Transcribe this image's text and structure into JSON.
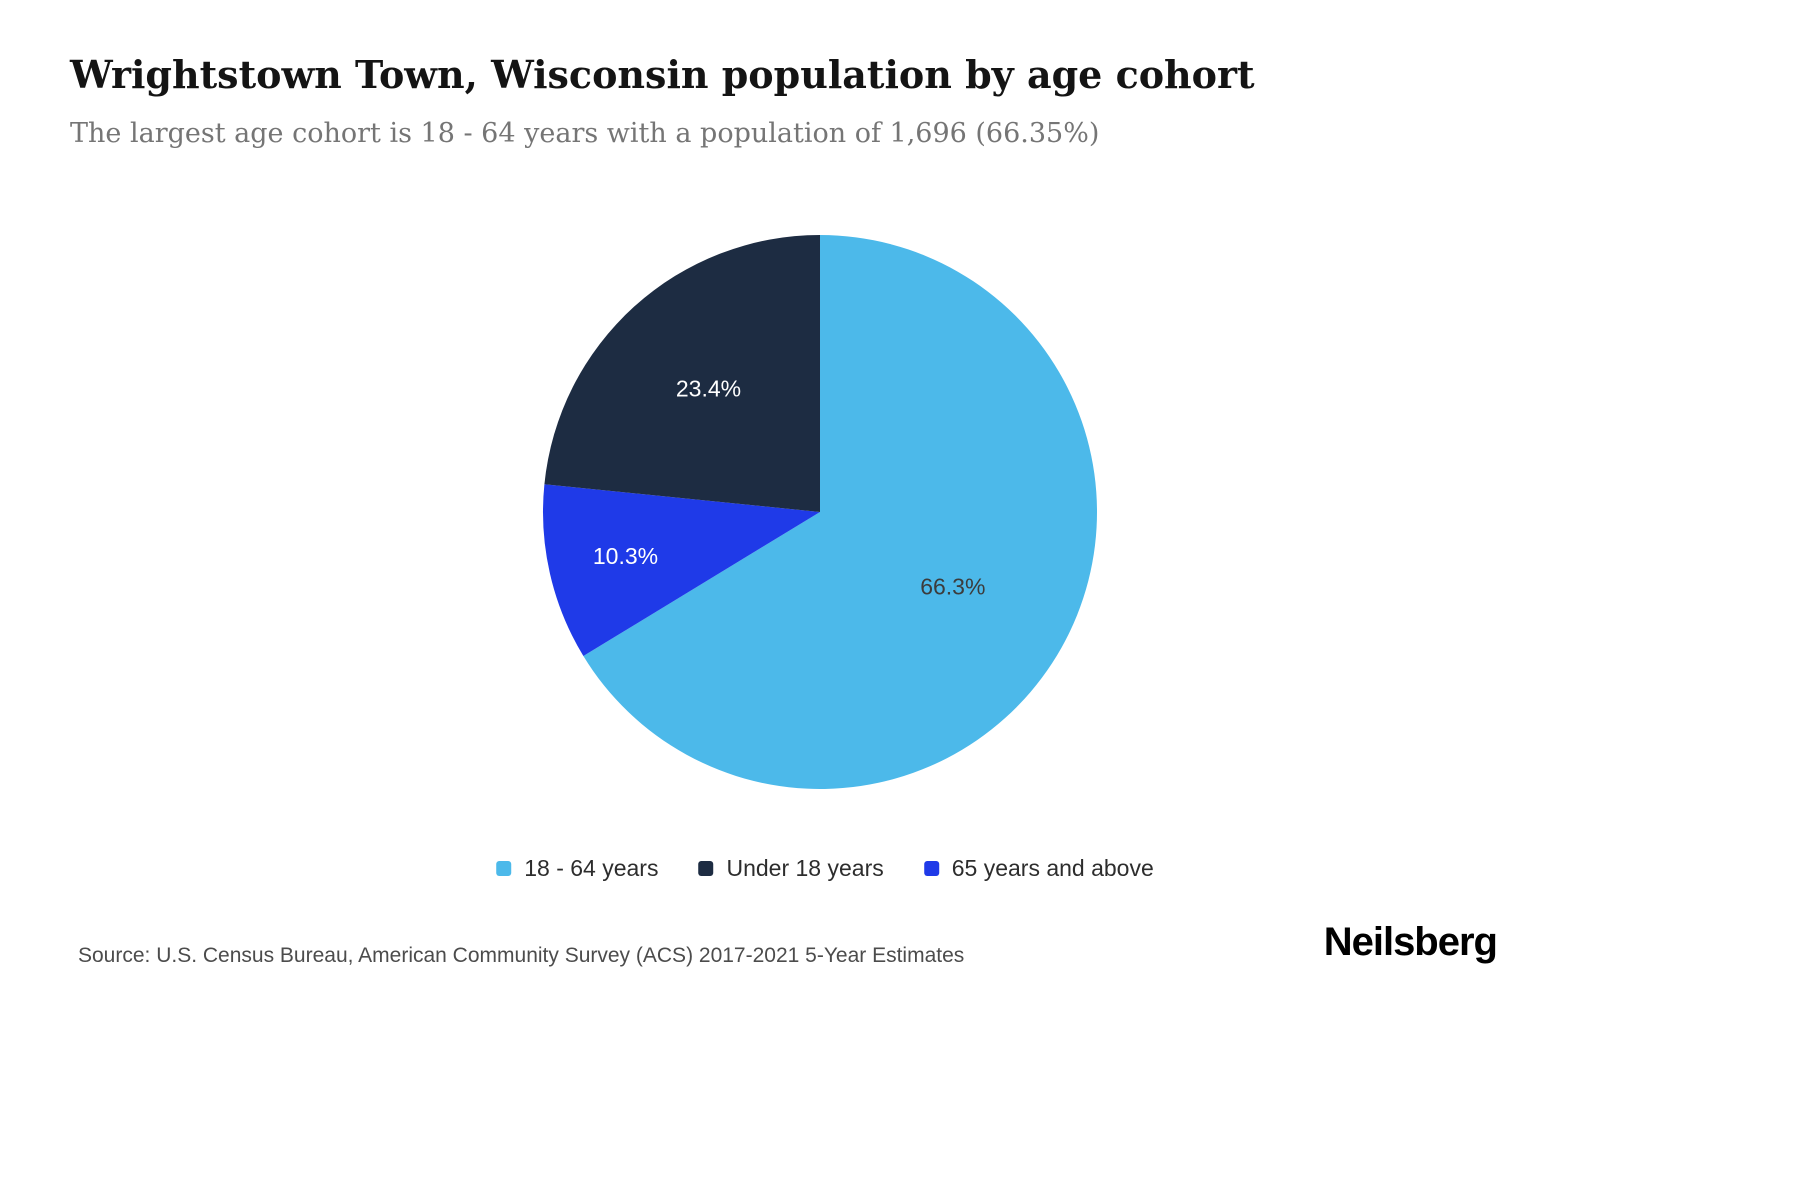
{
  "header": {
    "title": "Wrightstown Town, Wisconsin population by age cohort",
    "subtitle": "The largest age cohort is 18 - 64 years with a population of 1,696 (66.35%)"
  },
  "chart_data": {
    "type": "pie",
    "title": "Wrightstown Town, Wisconsin population by age cohort",
    "direction": "clockwise",
    "start_angle_deg": 0,
    "legend_position": "bottom",
    "slices": [
      {
        "label": "18 - 64 years",
        "value": 66.3,
        "display": "66.3%",
        "color": "#4cb9ea",
        "label_color": "#3c3c3c",
        "label_r": 0.55
      },
      {
        "label": "65 years and above",
        "value": 10.3,
        "display": "10.3%",
        "color": "#1f3ae8",
        "label_color": "#ffffff",
        "label_r": 0.72
      },
      {
        "label": "Under 18 years",
        "value": 23.4,
        "display": "23.4%",
        "color": "#1d2c42",
        "label_color": "#ffffff",
        "label_r": 0.6
      }
    ]
  },
  "legend": {
    "items": [
      {
        "label": "18 - 64 years",
        "color": "#4cb9ea"
      },
      {
        "label": "Under 18 years",
        "color": "#1d2c42"
      },
      {
        "label": "65 years and above",
        "color": "#1f3ae8"
      }
    ]
  },
  "footer": {
    "source": "Source: U.S. Census Bureau, American Community Survey (ACS) 2017-2021 5-Year Estimates",
    "brand": "Neilsberg"
  }
}
